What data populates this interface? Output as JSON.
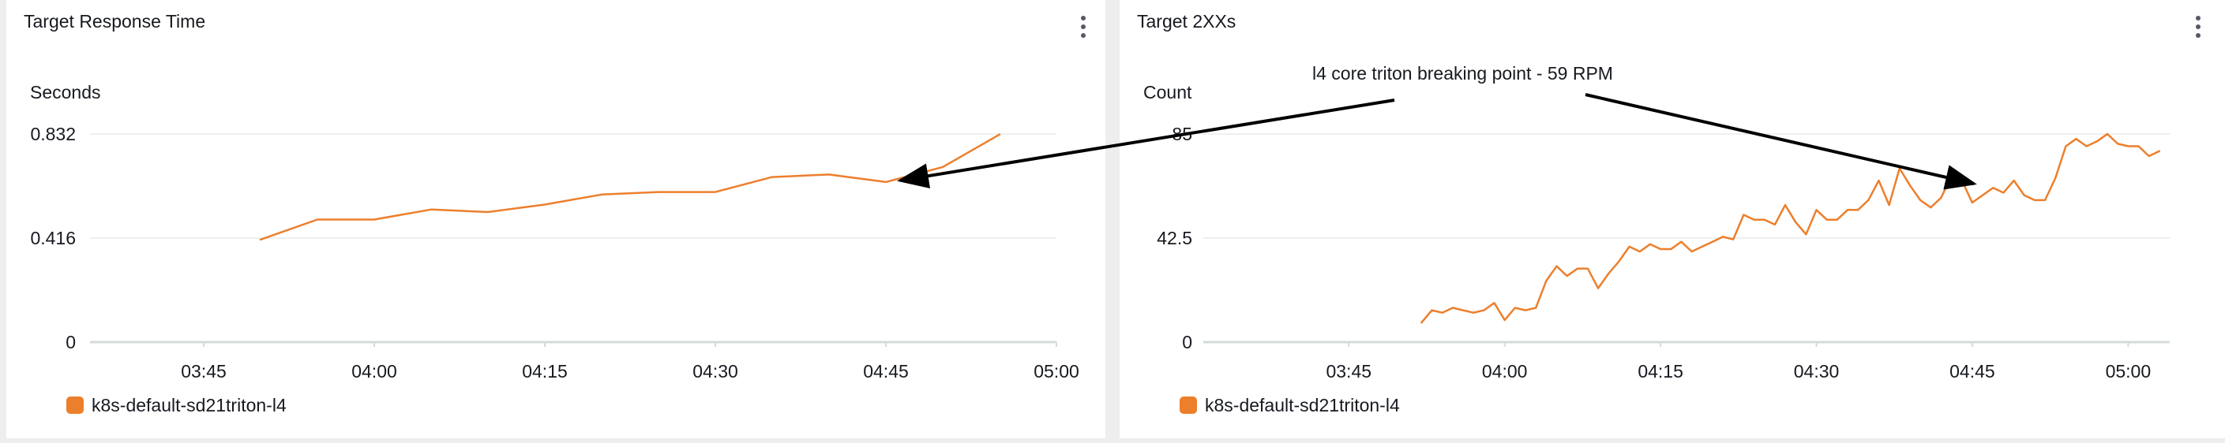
{
  "colors": {
    "series": "#ec7f2c",
    "grid": "#e9ebed",
    "axis": "#d5dbdb"
  },
  "annotation": {
    "text": "l4 core triton breaking point - 59 RPM"
  },
  "chart_data": [
    {
      "type": "line",
      "title": "Target Response Time",
      "ylabel": "Seconds",
      "xlabel": "",
      "ylim": [
        0,
        0.832
      ],
      "yticks": [
        "0",
        "0.416",
        "0.832"
      ],
      "xticks": [
        "03:45",
        "04:00",
        "04:15",
        "04:30",
        "04:45",
        "05:00"
      ],
      "legend": "bottom-left",
      "grid": true,
      "series": [
        {
          "name": "k8s-default-sd21triton-l4",
          "x": [
            "03:50",
            "03:55",
            "04:00",
            "04:05",
            "04:10",
            "04:15",
            "04:20",
            "04:25",
            "04:30",
            "04:35",
            "04:40",
            "04:45",
            "04:50",
            "04:55"
          ],
          "y": [
            0.41,
            0.49,
            0.49,
            0.53,
            0.52,
            0.55,
            0.59,
            0.6,
            0.6,
            0.66,
            0.67,
            0.64,
            0.7,
            0.83
          ]
        }
      ]
    },
    {
      "type": "line",
      "title": "Target 2XXs",
      "ylabel": "Count",
      "xlabel": "",
      "ylim": [
        0,
        85
      ],
      "yticks": [
        "0",
        "42.5",
        "85"
      ],
      "xticks": [
        "03:45",
        "04:00",
        "04:15",
        "04:30",
        "04:45",
        "05:00"
      ],
      "legend": "bottom-left",
      "grid": true,
      "series": [
        {
          "name": "k8s-default-sd21triton-l4",
          "x": [
            "03:52",
            "03:53",
            "03:54",
            "03:55",
            "03:56",
            "03:57",
            "03:58",
            "03:59",
            "04:00",
            "04:01",
            "04:02",
            "04:03",
            "04:04",
            "04:05",
            "04:06",
            "04:07",
            "04:08",
            "04:09",
            "04:10",
            "04:11",
            "04:12",
            "04:13",
            "04:14",
            "04:15",
            "04:16",
            "04:17",
            "04:18",
            "04:19",
            "04:20",
            "04:21",
            "04:22",
            "04:23",
            "04:24",
            "04:25",
            "04:26",
            "04:27",
            "04:28",
            "04:29",
            "04:30",
            "04:31",
            "04:32",
            "04:33",
            "04:34",
            "04:35",
            "04:36",
            "04:37",
            "04:38",
            "04:39",
            "04:40",
            "04:41",
            "04:42",
            "04:43",
            "04:44",
            "04:45",
            "04:46",
            "04:47",
            "04:48",
            "04:49",
            "04:50",
            "04:51",
            "04:52",
            "04:53",
            "04:54",
            "04:55",
            "04:56",
            "04:57",
            "04:58",
            "04:59",
            "05:00",
            "05:01",
            "05:02",
            "05:03"
          ],
          "y": [
            8,
            13,
            12,
            14,
            13,
            12,
            13,
            16,
            9,
            14,
            13,
            14,
            25,
            31,
            27,
            30,
            30,
            22,
            28,
            33,
            39,
            37,
            40,
            38,
            38,
            41,
            37,
            39,
            41,
            43,
            42,
            52,
            50,
            50,
            48,
            56,
            49,
            44,
            54,
            50,
            50,
            54,
            54,
            58,
            66,
            56,
            71,
            64,
            58,
            55,
            59,
            68,
            66,
            57,
            60,
            63,
            61,
            66,
            60,
            58,
            58,
            67,
            80,
            83,
            80,
            82,
            85,
            81,
            80,
            80,
            76,
            78
          ]
        }
      ]
    }
  ]
}
